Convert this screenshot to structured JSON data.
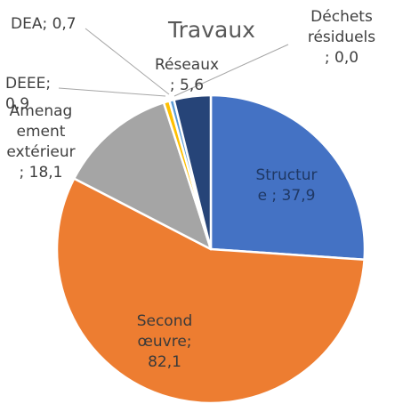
{
  "chart_data": {
    "type": "pie",
    "title": "Travaux",
    "slices": [
      {
        "name": "Structure",
        "value": 37.9,
        "label_lines": [
          "Structur",
          "e ; 37,9"
        ],
        "color": "#4472C4",
        "label_color": "#1F3864"
      },
      {
        "name": "Second œuvre",
        "value": 82.1,
        "label_lines": [
          "Second",
          "œuvre;",
          "82,1"
        ],
        "color": "#ED7D31",
        "label_color": "#3A3A3A"
      },
      {
        "name": "Amenagement extérieur",
        "value": 18.1,
        "label_lines": [
          "Amenag",
          "ement",
          "extérieur",
          "; 18,1"
        ],
        "color": "#A5A5A5",
        "label_color": "#404040"
      },
      {
        "name": "DEEE",
        "value": 0.9,
        "label_lines": [
          "DEEE;",
          "0,9"
        ],
        "color": "#FFC000",
        "label_color": "#404040"
      },
      {
        "name": "DEA",
        "value": 0.7,
        "label_lines": [
          "DEA; 0,7"
        ],
        "color": "#5B9BD5",
        "label_color": "#404040"
      },
      {
        "name": "Déchets résiduels",
        "value": 0.0,
        "label_lines": [
          "Déchets",
          "résiduels",
          "; 0,0"
        ],
        "color": "#70AD47",
        "label_color": "#404040"
      },
      {
        "name": "Réseaux",
        "value": 5.6,
        "label_lines": [
          "Réseaux",
          "; 5,6"
        ],
        "color": "#264478",
        "label_color": "#404040"
      }
    ]
  }
}
